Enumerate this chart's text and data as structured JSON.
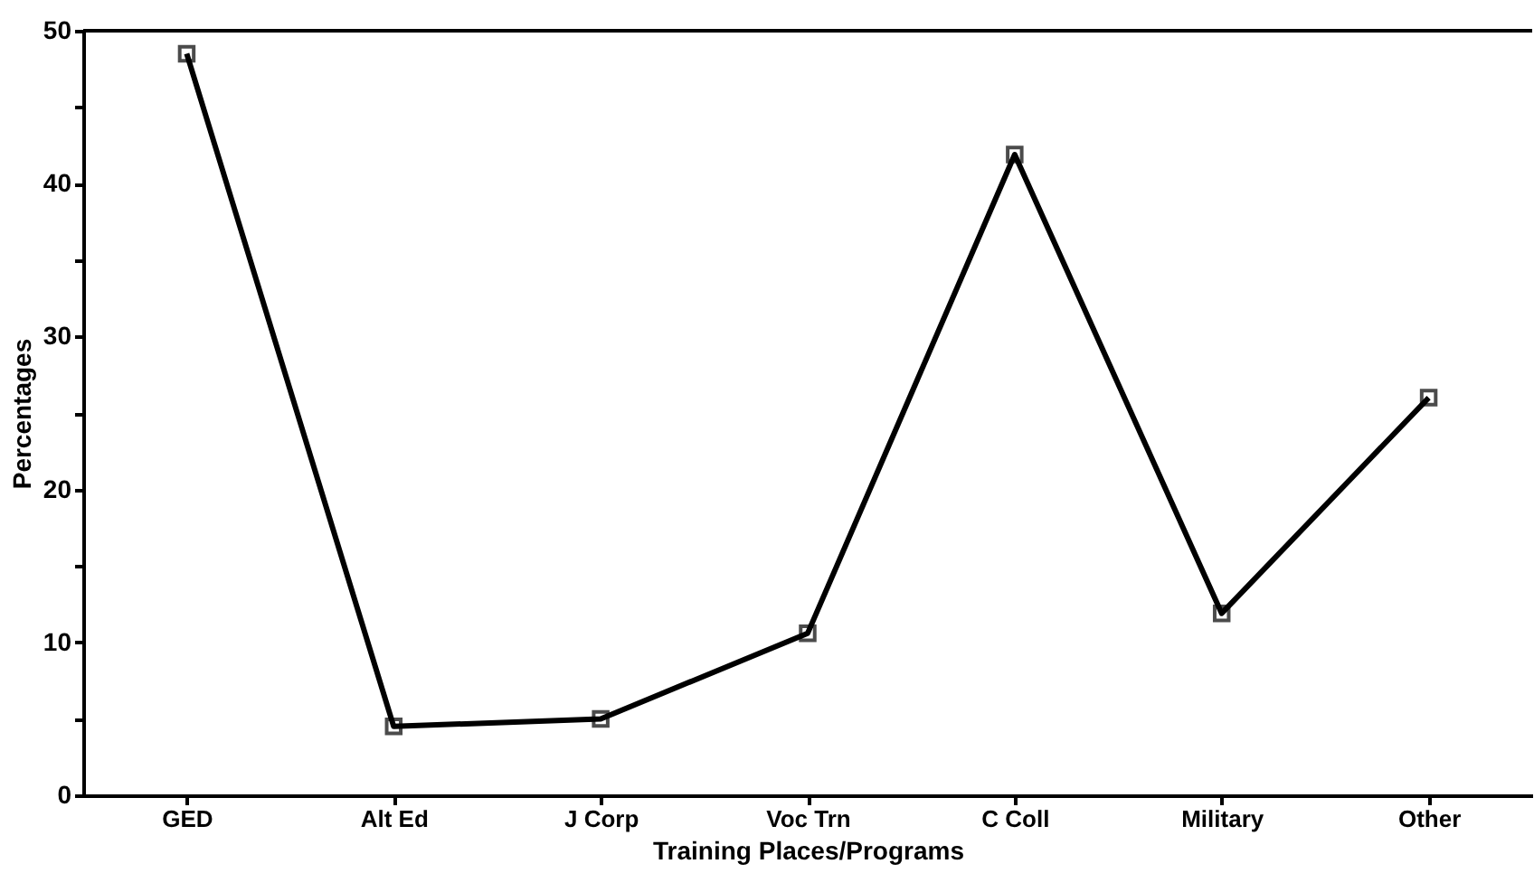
{
  "chart_data": {
    "type": "line",
    "xlabel": "Training Places/Programs",
    "ylabel": "Percentages",
    "categories": [
      "GED",
      "Alt Ed",
      "J Corp",
      "Voc Trn",
      "C Coll",
      "Military",
      "Other"
    ],
    "series": [
      {
        "color": "#000000",
        "values": [
          48.5,
          4.5,
          5.0,
          10.6,
          41.9,
          11.9,
          26.0
        ]
      }
    ],
    "ylim": [
      0,
      50
    ],
    "yticks": [
      0,
      {
        "value": 5,
        "label": null
      },
      10,
      {
        "value": 15,
        "label": null
      },
      20,
      {
        "value": 25,
        "label": null
      },
      30,
      {
        "value": 35,
        "label": null
      },
      40,
      {
        "value": 45,
        "label": null
      },
      50
    ],
    "marker": "square",
    "line_style": "solid",
    "grid": false
  }
}
